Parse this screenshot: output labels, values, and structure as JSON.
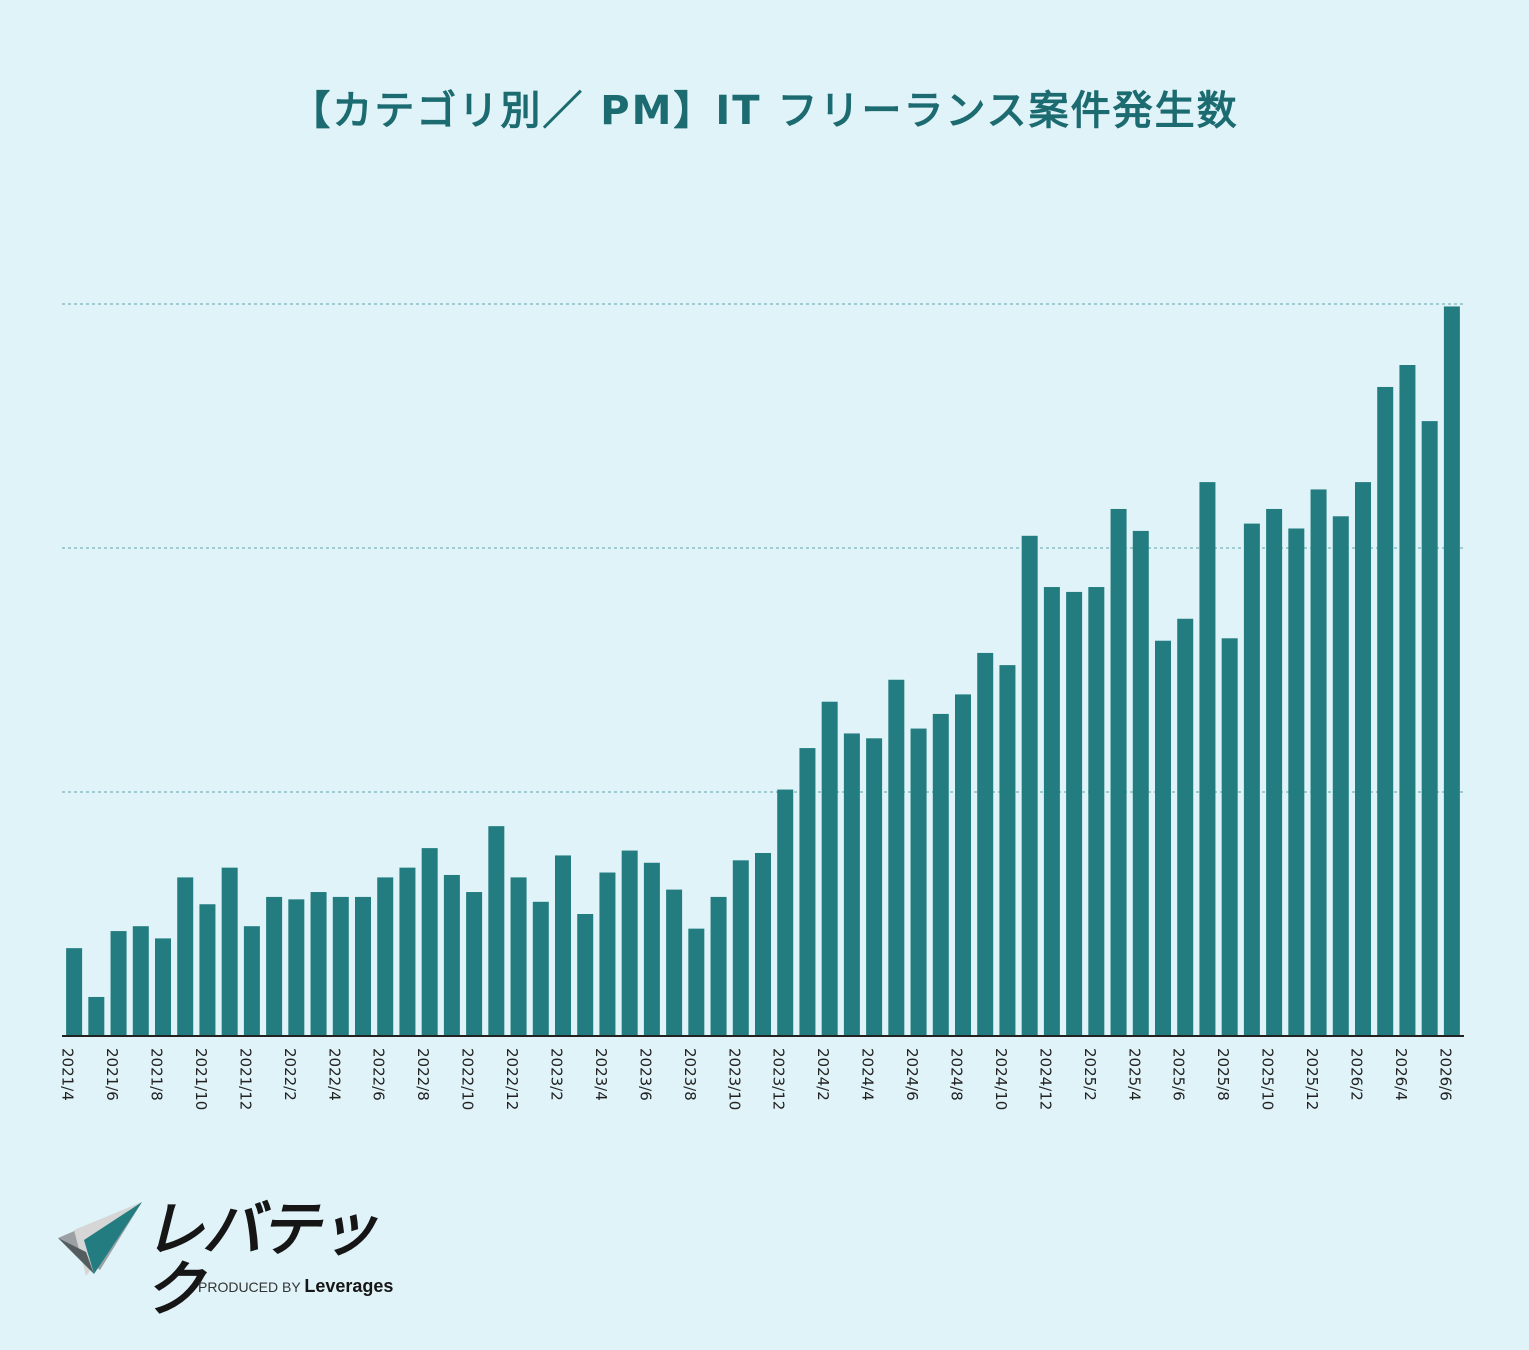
{
  "title": "【カテゴリ別／ PM】IT フリーランス案件発生数",
  "colors": {
    "background": "#e0f3f8",
    "bar": "#237d80",
    "title": "#1b6b70",
    "gridline": "#8bbfc4",
    "axis": "#222222"
  },
  "logo": {
    "wordmark": "レバテック",
    "produced_by": "PRODUCED BY",
    "brand": "Leverages"
  },
  "chart_data": {
    "type": "bar",
    "title": "【カテゴリ別／ PM】IT フリーランス案件発生数",
    "xlabel": "",
    "ylabel": "",
    "y_tick_labels_shown": false,
    "grid": "horizontal dotted",
    "ylim": [
      0,
      3
    ],
    "categories": [
      "2021/4",
      "2021/5",
      "2021/6",
      "2021/7",
      "2021/8",
      "2021/9",
      "2021/10",
      "2021/11",
      "2021/12",
      "2022/1",
      "2022/2",
      "2022/3",
      "2022/4",
      "2022/5",
      "2022/6",
      "2022/7",
      "2022/8",
      "2022/9",
      "2022/10",
      "2022/11",
      "2022/12",
      "2023/1",
      "2023/2",
      "2023/3",
      "2023/4",
      "2023/5",
      "2023/6",
      "2023/7",
      "2023/8",
      "2023/9",
      "2023/10",
      "2023/11",
      "2023/12",
      "2024/1",
      "2024/2",
      "2024/3",
      "2024/4",
      "2024/5",
      "2024/6",
      "2024/7",
      "2024/8",
      "2024/9",
      "2024/10",
      "2024/11",
      "2024/12",
      "2025/1",
      "2025/2",
      "2025/3",
      "2025/4",
      "2025/5",
      "2025/6",
      "2025/7",
      "2025/8",
      "2025/9",
      "2025/10",
      "2025/11",
      "2025/12",
      "2026/1",
      "2026/2",
      "2026/3",
      "2026/4",
      "2026/5",
      "2026/6"
    ],
    "tick_labels": [
      "2021/4",
      "2021/6",
      "2021/8",
      "2021/10",
      "2021/12",
      "2022/2",
      "2022/4",
      "2022/6",
      "2022/8",
      "2022/10",
      "2022/12",
      "2023/2",
      "2023/4",
      "2023/6",
      "2023/8",
      "2023/10",
      "2023/12",
      "2024/2",
      "2024/4",
      "2024/6",
      "2024/8",
      "2024/10",
      "2024/12",
      "2025/2",
      "2025/4",
      "2025/6",
      "2025/8",
      "2025/10",
      "2025/12",
      "2026/2",
      "2026/4",
      "2026/6"
    ],
    "values": [
      0.36,
      0.16,
      0.43,
      0.45,
      0.4,
      0.65,
      0.54,
      0.69,
      0.45,
      0.57,
      0.56,
      0.59,
      0.57,
      0.57,
      0.65,
      0.69,
      0.77,
      0.66,
      0.59,
      0.86,
      0.65,
      0.55,
      0.74,
      0.5,
      0.67,
      0.76,
      0.71,
      0.6,
      0.44,
      0.57,
      0.72,
      0.75,
      1.01,
      1.18,
      1.37,
      1.24,
      1.22,
      1.46,
      1.26,
      1.32,
      1.4,
      1.57,
      1.52,
      2.05,
      1.84,
      1.82,
      1.84,
      2.16,
      2.07,
      1.62,
      1.71,
      2.27,
      1.63,
      2.1,
      2.16,
      2.08,
      2.24,
      2.13,
      2.27,
      2.66,
      2.75,
      2.52,
      2.99
    ]
  }
}
